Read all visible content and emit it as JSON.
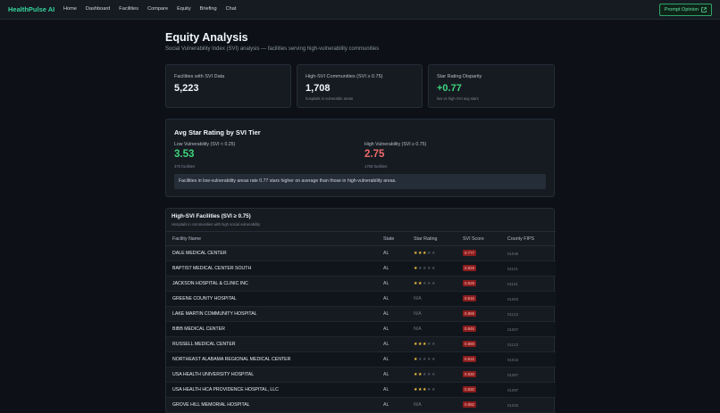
{
  "app": {
    "logo": "HealthPulse AI",
    "nav": [
      "Home",
      "Dashboard",
      "Facilities",
      "Compare",
      "Equity",
      "Briefing",
      "Chat"
    ],
    "opinion_button": "Prompt Opinion"
  },
  "page": {
    "title": "Equity Analysis",
    "subtitle": "Social Vulnerability Index (SVI) analysis — facilities serving high-vulnerability communities"
  },
  "stats": [
    {
      "label": "Facilities with SVI Data",
      "value": "5,223",
      "note": ""
    },
    {
      "label": "High-SVI Communities (SVI ≥ 0.75)",
      "value": "1,708",
      "note": "hospitals in vulnerable areas"
    },
    {
      "label": "Star Rating Disparity",
      "value": "+0.77",
      "note": "low vs high SVI avg stars"
    }
  ],
  "tier": {
    "title": "Avg Star Rating by SVI Tier",
    "low_label": "Low Vulnerability (SVI < 0.25)",
    "low_value": "3.53",
    "low_count": "375 facilities",
    "high_label": "High Vulnerability (SVI ≥ 0.75)",
    "high_value": "2.75",
    "high_count": "1708 facilities",
    "callout": "Facilities in low-vulnerability areas rate 0.77 stars higher on average than those in high-vulnerability areas."
  },
  "table": {
    "title": "High-SVI Facilities (SVI ≥ 0.75)",
    "subtitle": "Hospitals in communities with high social vulnerability",
    "headers": {
      "name": "Facility Name",
      "state": "State",
      "stars": "Star Rating",
      "svi": "SVI Score",
      "fips": "County FIPS"
    },
    "rows": [
      {
        "name": "DALE MEDICAL CENTER",
        "state": "AL",
        "stars": 3,
        "svi": "0.777",
        "fips": "01045"
      },
      {
        "name": "BAPTIST MEDICAL CENTER SOUTH",
        "state": "AL",
        "stars": 1,
        "svi": "0.929",
        "fips": "01101"
      },
      {
        "name": "JACKSON HOSPITAL & CLINIC INC",
        "state": "AL",
        "stars": 2,
        "svi": "0.929",
        "fips": "01101"
      },
      {
        "name": "GREENE COUNTY HOSPITAL",
        "state": "AL",
        "stars": null,
        "svi": "0.916",
        "fips": "01063"
      },
      {
        "name": "LAKE MARTIN COMMUNITY HOSPITAL",
        "state": "AL",
        "stars": null,
        "svi": "0.869",
        "fips": "01123"
      },
      {
        "name": "BIBB MEDICAL CENTER",
        "state": "AL",
        "stars": null,
        "svi": "0.845",
        "fips": "01007"
      },
      {
        "name": "RUSSELL MEDICAL CENTER",
        "state": "AL",
        "stars": 3,
        "svi": "0.869",
        "fips": "01123"
      },
      {
        "name": "NORTHEAST ALABAMA REGIONAL MEDICAL CENTER",
        "state": "AL",
        "stars": 1,
        "svi": "0.815",
        "fips": "01015"
      },
      {
        "name": "USA HEALTH UNIVERSITY HOSPITAL",
        "state": "AL",
        "stars": 2,
        "svi": "0.830",
        "fips": "01097"
      },
      {
        "name": "USA HEALTH HCA PROVIDENCE HOSPITAL, LLC",
        "state": "AL",
        "stars": 3,
        "svi": "0.830",
        "fips": "01097"
      },
      {
        "name": "GROVE HILL MEMORIAL HOSPITAL",
        "state": "AL",
        "stars": null,
        "svi": "0.892",
        "fips": "01025"
      }
    ],
    "na_text": "N/A"
  },
  "colors": {
    "accent": "#34d399",
    "positive": "#3fd47e",
    "negative": "#f06a6a",
    "star": "#f5c542",
    "badge": "#8b1d1d"
  }
}
